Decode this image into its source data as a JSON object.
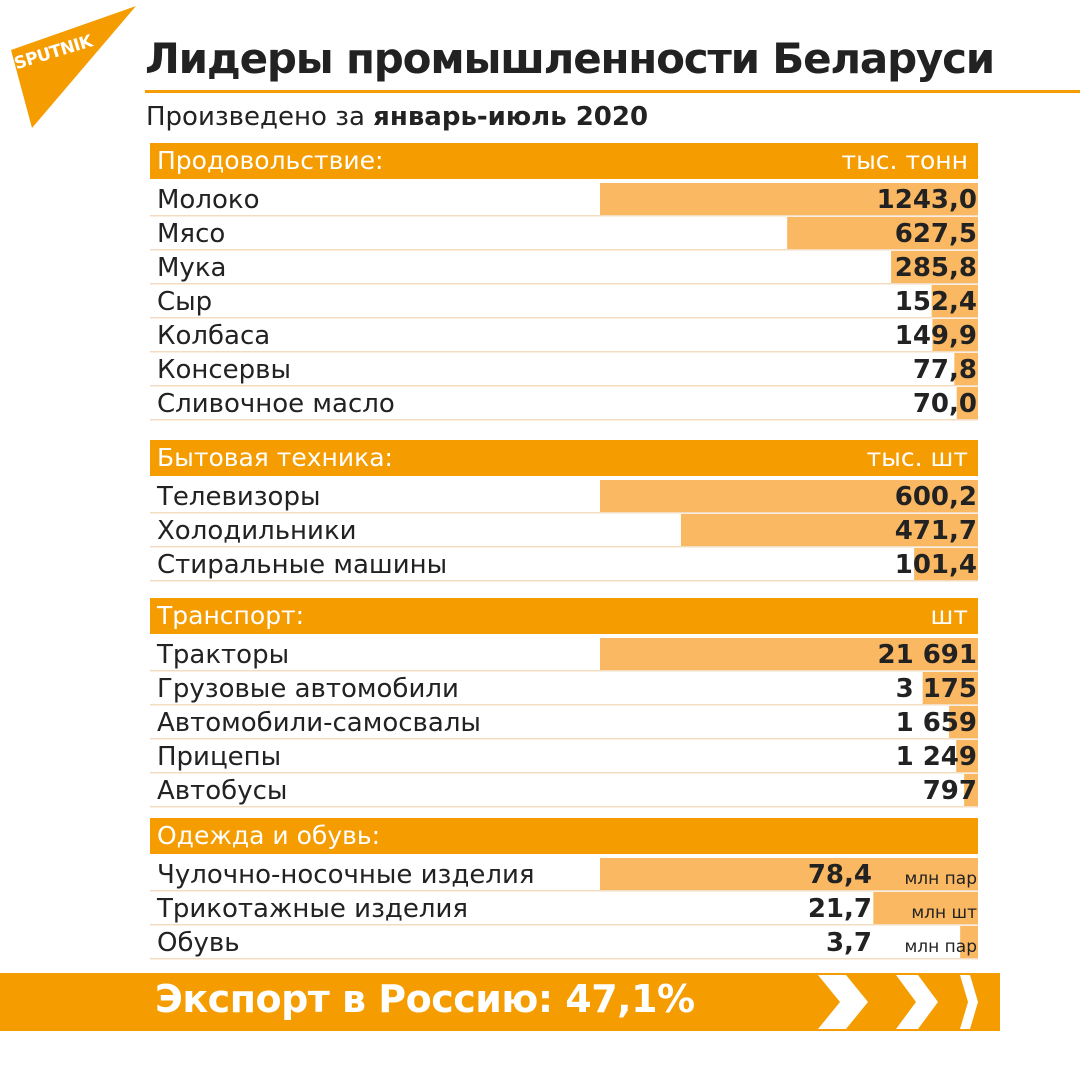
{
  "logo": {
    "text": "SPUTNIK"
  },
  "title": "Лидеры промышленности Беларуси",
  "subtitle": {
    "prefix": "Произведено за ",
    "period": "январь-июль 2020"
  },
  "colors": {
    "accent": "#f59c00",
    "bar": "#fab862",
    "text": "#222222",
    "rule": "#f3dcc0"
  },
  "chart_data": {
    "type": "bar",
    "orientation": "horizontal",
    "groups": [
      {
        "name": "Продовольствие:",
        "unit": "тыс. тонн",
        "rows": [
          {
            "label": "Молоко",
            "value": 1243.0,
            "display": "1243,0"
          },
          {
            "label": "Мясо",
            "value": 627.5,
            "display": "627,5"
          },
          {
            "label": "Мука",
            "value": 285.8,
            "display": "285,8"
          },
          {
            "label": "Сыр",
            "value": 152.4,
            "display": "152,4"
          },
          {
            "label": "Колбаса",
            "value": 149.9,
            "display": "149,9"
          },
          {
            "label": "Консервы",
            "value": 77.8,
            "display": "77,8"
          },
          {
            "label": "Сливочное масло",
            "value": 70.0,
            "display": "70,0"
          }
        ]
      },
      {
        "name": "Бытовая техника:",
        "unit": "тыс. шт",
        "rows": [
          {
            "label": "Телевизоры",
            "value": 600.2,
            "display": "600,2"
          },
          {
            "label": "Холодильники",
            "value": 471.7,
            "display": "471,7"
          },
          {
            "label": "Стиральные машины",
            "value": 101.4,
            "display": "101,4"
          }
        ]
      },
      {
        "name": "Транспорт:",
        "unit": "шт",
        "rows": [
          {
            "label": "Тракторы",
            "value": 21691,
            "display": "21 691"
          },
          {
            "label": "Грузовые автомобили",
            "value": 3175,
            "display": "3 175"
          },
          {
            "label": "Автомобили-самосвалы",
            "value": 1659,
            "display": "1 659"
          },
          {
            "label": "Прицепы",
            "value": 1249,
            "display": "1 249"
          },
          {
            "label": "Автобусы",
            "value": 797,
            "display": "797"
          }
        ]
      },
      {
        "name": "Одежда и обувь:",
        "unit": "",
        "rows": [
          {
            "label": "Чулочно-носочные изделия",
            "value": 78.4,
            "display": "78,4",
            "unit": "млн пар"
          },
          {
            "label": "Трикотажные изделия",
            "value": 21.7,
            "display": "21,7",
            "unit": "млн шт"
          },
          {
            "label": "Обувь",
            "value": 3.7,
            "display": "3,7",
            "unit": "млн пар"
          }
        ]
      }
    ]
  },
  "footer": {
    "text": "Экспорт в Россию: 47,1%"
  }
}
